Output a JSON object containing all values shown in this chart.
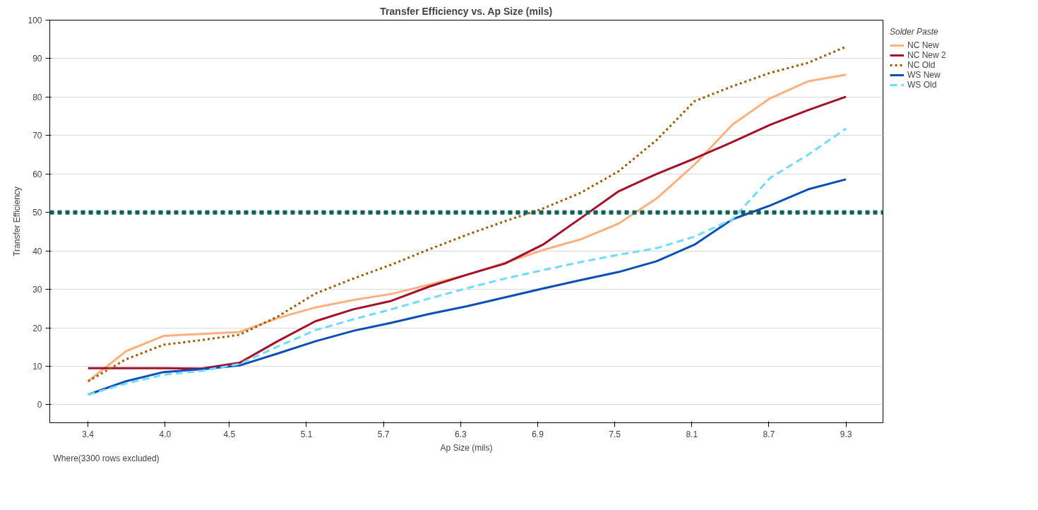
{
  "chart_data": {
    "type": "line",
    "title": "Transfer Efficiency vs. Ap Size (mils)",
    "xlabel": "Ap Size (mils)",
    "ylabel": "Transfer Efficiency",
    "legend_title": "Solder Paste",
    "legend": "top right",
    "grid": "y",
    "marker": "none",
    "x": [
      3.4,
      3.695,
      3.99,
      4.285,
      4.58,
      4.875,
      5.17,
      5.465,
      5.76,
      6.055,
      6.35,
      6.645,
      6.94,
      7.235,
      7.53,
      7.825,
      8.12,
      8.415,
      8.71,
      9.005,
      9.3
    ],
    "xlim": [
      3.102,
      9.588
    ],
    "xticks": [
      3.4,
      {
        "value": 4.0,
        "label": "4.0"
      },
      4.5,
      5.1,
      5.7,
      6.3,
      6.9,
      7.5,
      8.1,
      8.7,
      9.3
    ],
    "ylim": [
      -4.7,
      100
    ],
    "yticks": [
      0,
      10,
      20,
      30,
      40,
      50,
      60,
      70,
      80,
      90,
      100
    ],
    "series": [
      {
        "name": "NC New",
        "color": "#ffb07c",
        "line_style": "solid",
        "values": [
          6.1,
          13.9,
          17.9,
          18.4,
          18.9,
          22.5,
          25.3,
          27.2,
          28.8,
          31.2,
          33.8,
          36.9,
          40.2,
          43,
          47.1,
          53.6,
          62.4,
          72.8,
          79.7,
          84.1,
          85.8
        ]
      },
      {
        "name": "NC New 2",
        "color": "#a50f2a",
        "line_style": "solid",
        "values": [
          9.5,
          9.5,
          9.5,
          9.4,
          10.9,
          16.5,
          21.7,
          24.8,
          27,
          30.7,
          33.8,
          36.7,
          41.6,
          48.5,
          55.5,
          60,
          64,
          68.3,
          72.8,
          76.6,
          80.1
        ]
      },
      {
        "name": "NC Old",
        "color": "#9c5a00",
        "line_style": "dotted",
        "values": [
          6.1,
          11.8,
          15.6,
          16.8,
          18.2,
          22.9,
          28.9,
          32.8,
          36.4,
          40.4,
          44.2,
          47.7,
          51,
          55.1,
          60.7,
          68.8,
          78.9,
          82.8,
          86.3,
          88.9,
          93.1
        ]
      },
      {
        "name": "WS New",
        "color": "#0a4fb5",
        "line_style": "solid",
        "values": [
          2.6,
          6.1,
          8.5,
          9.2,
          10.2,
          13.3,
          16.5,
          19.2,
          21.3,
          23.6,
          25.6,
          27.9,
          30.2,
          32.4,
          34.5,
          37.3,
          41.6,
          48.2,
          51.8,
          56,
          58.6
        ]
      },
      {
        "name": "WS Old",
        "color": "#6fdcff",
        "line_style": "dashed",
        "values": [
          2.6,
          5.5,
          7.8,
          8.8,
          10.6,
          15.1,
          19.4,
          22.2,
          24.8,
          27.6,
          30.3,
          32.8,
          35,
          37.1,
          39,
          40.7,
          43.7,
          48.2,
          59,
          65,
          71.8
        ]
      }
    ],
    "ref_lines": [
      {
        "axis": "y",
        "value": 50,
        "color": "#0f6157",
        "line_style": "dotted"
      }
    ],
    "annotations": [
      "Where(3300 rows excluded)"
    ]
  }
}
